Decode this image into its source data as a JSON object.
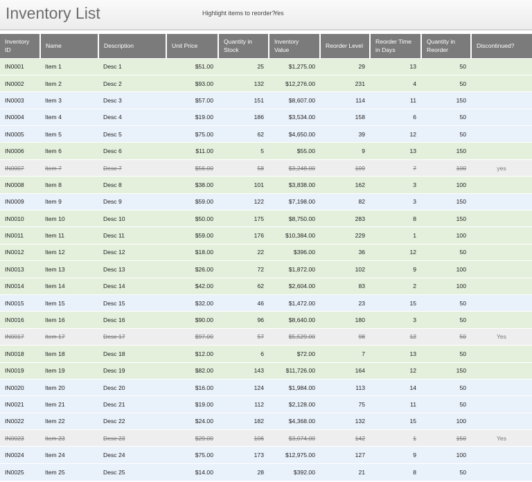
{
  "header": {
    "title": "Inventory List",
    "highlight_label": "Highlight items to reorder?",
    "highlight_value": "Yes"
  },
  "table": {
    "headers": [
      "Inventory ID",
      "Name",
      "Description",
      "Unit Price",
      "Quantity in Stock",
      "Inventory Value",
      "Reorder Level",
      "Reorder Time in Days",
      "Quantity in Reorder",
      "Discontinued?"
    ],
    "rows": [
      [
        "IN0001",
        "Item 1",
        "Desc 1",
        "$51.00",
        "25",
        "$1,275.00",
        "29",
        "13",
        "50",
        null
      ],
      [
        "IN0002",
        "Item 2",
        "Desc 2",
        "$93.00",
        "132",
        "$12,276.00",
        "231",
        "4",
        "50",
        null
      ],
      [
        "IN0003",
        "Item 3",
        "Desc 3",
        "$57.00",
        "151",
        "$8,607.00",
        "114",
        "11",
        "150",
        null
      ],
      [
        "IN0004",
        "Item 4",
        "Desc 4",
        "$19.00",
        "186",
        "$3,534.00",
        "158",
        "6",
        "50",
        null
      ],
      [
        "IN0005",
        "Item 5",
        "Desc 5",
        "$75.00",
        "62",
        "$4,650.00",
        "39",
        "12",
        "50",
        null
      ],
      [
        "IN0006",
        "Item 6",
        "Desc 6",
        "$11.00",
        "5",
        "$55.00",
        "9",
        "13",
        "150",
        null
      ],
      [
        "IN0007",
        "Item 7",
        "Desc 7",
        "$56.00",
        "58",
        "$3,248.00",
        "109",
        "7",
        "100",
        "yes"
      ],
      [
        "IN0008",
        "Item 8",
        "Desc 8",
        "$38.00",
        "101",
        "$3,838.00",
        "162",
        "3",
        "100",
        null
      ],
      [
        "IN0009",
        "Item 9",
        "Desc 9",
        "$59.00",
        "122",
        "$7,198.00",
        "82",
        "3",
        "150",
        null
      ],
      [
        "IN0010",
        "Item 10",
        "Desc 10",
        "$50.00",
        "175",
        "$8,750.00",
        "283",
        "8",
        "150",
        null
      ],
      [
        "IN0011",
        "Item 11",
        "Desc 11",
        "$59.00",
        "176",
        "$10,384.00",
        "229",
        "1",
        "100",
        null
      ],
      [
        "IN0012",
        "Item 12",
        "Desc 12",
        "$18.00",
        "22",
        "$396.00",
        "36",
        "12",
        "50",
        null
      ],
      [
        "IN0013",
        "Item 13",
        "Desc 13",
        "$26.00",
        "72",
        "$1,872.00",
        "102",
        "9",
        "100",
        null
      ],
      [
        "IN0014",
        "Item 14",
        "Desc 14",
        "$42.00",
        "62",
        "$2,604.00",
        "83",
        "2",
        "100",
        null
      ],
      [
        "IN0015",
        "Item 15",
        "Desc 15",
        "$32.00",
        "46",
        "$1,472.00",
        "23",
        "15",
        "50",
        null
      ],
      [
        "IN0016",
        "Item 16",
        "Desc 16",
        "$90.00",
        "96",
        "$8,640.00",
        "180",
        "3",
        "50",
        null
      ],
      [
        "IN0017",
        "Item 17",
        "Desc 17",
        "$97.00",
        "57",
        "$5,529.00",
        "98",
        "12",
        "50",
        "Yes"
      ],
      [
        "IN0018",
        "Item 18",
        "Desc 18",
        "$12.00",
        "6",
        "$72.00",
        "7",
        "13",
        "50",
        null
      ],
      [
        "IN0019",
        "Item 19",
        "Desc 19",
        "$82.00",
        "143",
        "$11,726.00",
        "164",
        "12",
        "150",
        null
      ],
      [
        "IN0020",
        "Item 20",
        "Desc 20",
        "$16.00",
        "124",
        "$1,984.00",
        "113",
        "14",
        "50",
        null
      ],
      [
        "IN0021",
        "Item 21",
        "Desc 21",
        "$19.00",
        "112",
        "$2,128.00",
        "75",
        "11",
        "50",
        null
      ],
      [
        "IN0022",
        "Item 22",
        "Desc 22",
        "$24.00",
        "182",
        "$4,368.00",
        "132",
        "15",
        "100",
        null
      ],
      [
        "IN0023",
        "Item 23",
        "Desc 23",
        "$29.00",
        "106",
        "$3,074.00",
        "142",
        "1",
        "150",
        "Yes"
      ],
      [
        "IN0024",
        "Item 24",
        "Desc 24",
        "$75.00",
        "173",
        "$12,975.00",
        "127",
        "9",
        "100",
        null
      ],
      [
        "IN0025",
        "Item 25",
        "Desc 25",
        "$14.00",
        "28",
        "$392.00",
        "21",
        "8",
        "50",
        null
      ]
    ]
  }
}
